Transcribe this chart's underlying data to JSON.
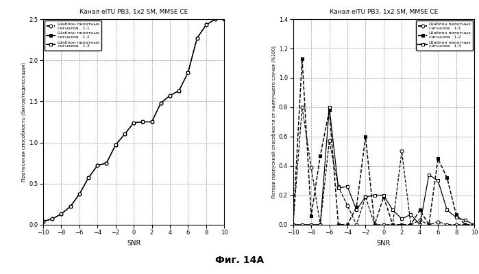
{
  "title": "Канал eITU PB3, 1x2 SM, MMSE CE",
  "snr": [
    -10,
    -9,
    -8,
    -7,
    -6,
    -5,
    -4,
    -3,
    -2,
    -1,
    0,
    1,
    2,
    3,
    4,
    5,
    6,
    7,
    8,
    9,
    10
  ],
  "left": {
    "ylabel": "Пропускная способность (битов/поднесущая)",
    "xlabel": "SNR",
    "ylim": [
      0,
      2.5
    ],
    "xlim": [
      -10,
      10
    ],
    "line1": [
      0.04,
      0.07,
      0.13,
      0.22,
      0.37,
      0.57,
      0.72,
      0.75,
      0.97,
      1.1,
      1.24,
      1.25,
      1.25,
      1.48,
      1.57,
      1.63,
      1.85,
      2.27,
      2.43,
      2.5,
      2.5
    ],
    "line2": [
      0.04,
      0.07,
      0.13,
      0.22,
      0.37,
      0.57,
      0.72,
      0.75,
      0.97,
      1.1,
      1.24,
      1.25,
      1.25,
      1.48,
      1.57,
      1.63,
      1.85,
      2.27,
      2.43,
      2.5,
      2.5
    ],
    "line3": [
      0.04,
      0.07,
      0.13,
      0.22,
      0.37,
      0.57,
      0.72,
      0.75,
      0.97,
      1.1,
      1.24,
      1.25,
      1.25,
      1.48,
      1.57,
      1.63,
      1.85,
      2.27,
      2.43,
      2.5,
      2.5
    ],
    "desc": "Шаблон пилотных\nсигналов",
    "label1": "1-1",
    "label2": "1-2",
    "label3": "1-3",
    "yticks": [
      0,
      0.5,
      1.0,
      1.5,
      2.0,
      2.5
    ],
    "xticks": [
      -10,
      -8,
      -6,
      -4,
      -2,
      0,
      2,
      4,
      6,
      8,
      10
    ]
  },
  "right": {
    "ylabel": "Потери пропускной способности от наилучшего случая (%100)",
    "xlabel": "SNR",
    "ylim": [
      0,
      1.4
    ],
    "xlim": [
      -10,
      10
    ],
    "line1": [
      0.0,
      0.8,
      0.39,
      0.0,
      0.57,
      0.26,
      0.13,
      0.0,
      0.19,
      0.0,
      0.0,
      0.0,
      0.5,
      0.0,
      0.03,
      0.0,
      0.02,
      0.0,
      0.0,
      0.0,
      0.0
    ],
    "line2": [
      0.0,
      1.13,
      0.06,
      0.47,
      0.78,
      0.0,
      0.0,
      0.12,
      0.6,
      0.0,
      0.19,
      0.0,
      0.0,
      0.0,
      0.1,
      0.0,
      0.45,
      0.32,
      0.07,
      0.0,
      0.0
    ],
    "line3": [
      0.0,
      0.0,
      0.0,
      0.0,
      0.8,
      0.25,
      0.26,
      0.1,
      0.19,
      0.2,
      0.2,
      0.1,
      0.04,
      0.07,
      0.0,
      0.34,
      0.3,
      0.1,
      0.05,
      0.03,
      0.0
    ],
    "desc": "Шаблон пилотных\nсигналов",
    "label1": "1-1",
    "label2": "1-2",
    "label3": "1-3",
    "yticks": [
      0,
      0.2,
      0.4,
      0.6,
      0.8,
      1.0,
      1.2,
      1.4
    ],
    "xticks": [
      -10,
      -8,
      -6,
      -4,
      -2,
      0,
      2,
      4,
      6,
      8,
      10
    ]
  },
  "fig_label": "Фиг. 14А"
}
